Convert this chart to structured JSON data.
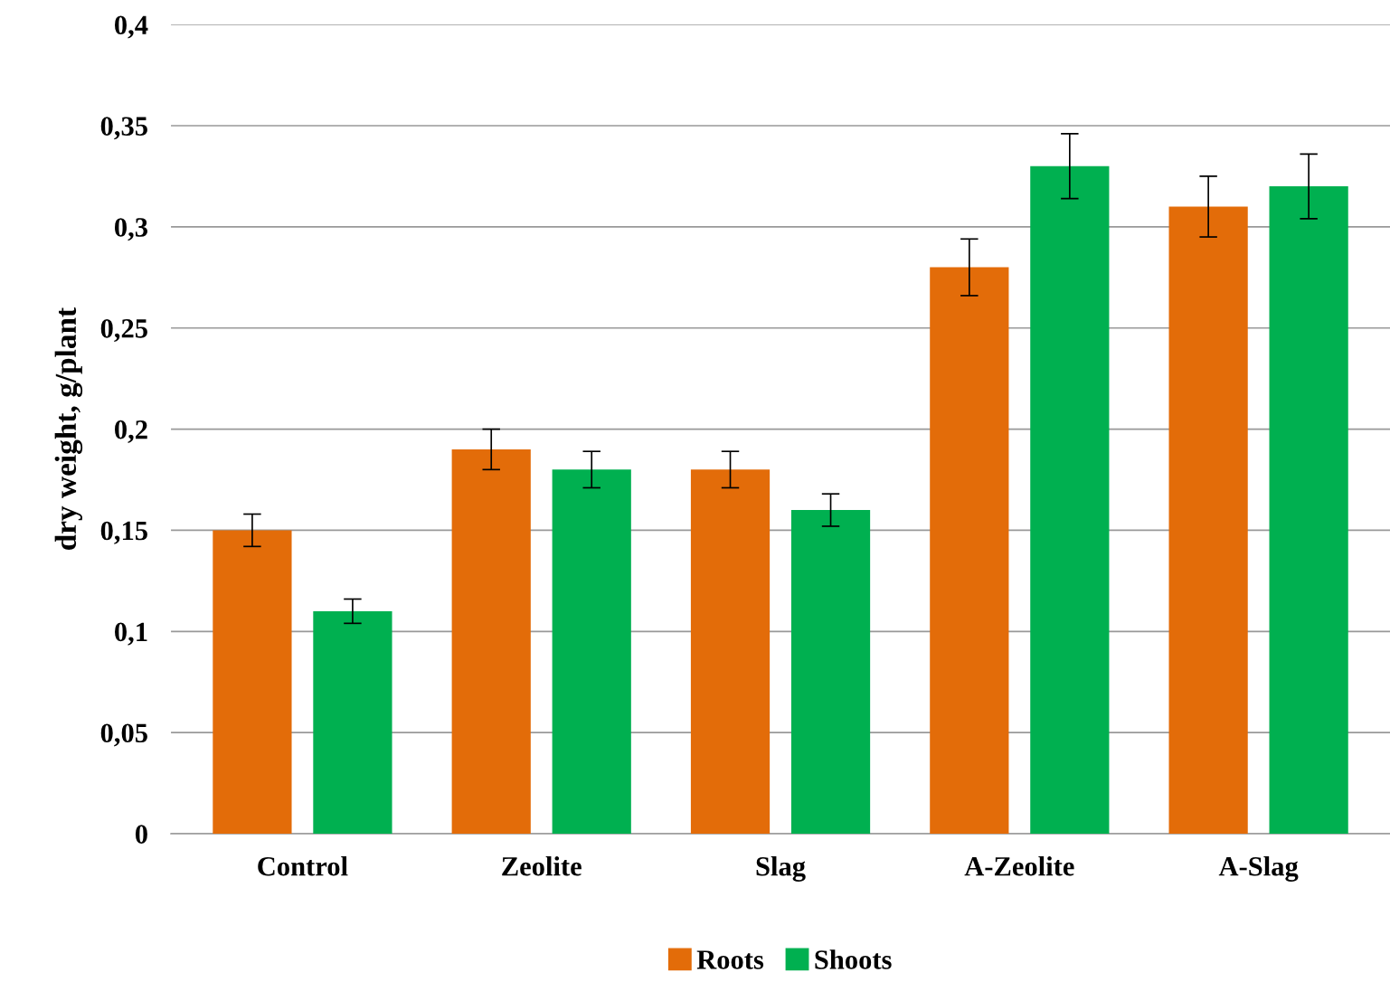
{
  "chart_data": {
    "type": "bar",
    "ylabel": "dry weight, g/plant",
    "categories": [
      "Control",
      "Zeolite",
      "Slag",
      "A-Zeolite",
      "A-Slag"
    ],
    "series": [
      {
        "name": "Roots",
        "color": "#e36c09",
        "values": [
          0.15,
          0.19,
          0.18,
          0.28,
          0.31
        ],
        "errors": [
          0.008,
          0.01,
          0.009,
          0.014,
          0.015
        ]
      },
      {
        "name": "Shoots",
        "color": "#00b050",
        "values": [
          0.11,
          0.18,
          0.16,
          0.33,
          0.32
        ],
        "errors": [
          0.006,
          0.009,
          0.008,
          0.016,
          0.016
        ]
      }
    ],
    "ylim": [
      0,
      0.4
    ],
    "yticks": [
      {
        "value": 0,
        "label": "0"
      },
      {
        "value": 0.05,
        "label": "0,05"
      },
      {
        "value": 0.1,
        "label": "0,1"
      },
      {
        "value": 0.15,
        "label": "0,15"
      },
      {
        "value": 0.2,
        "label": "0,2"
      },
      {
        "value": 0.25,
        "label": "0,25"
      },
      {
        "value": 0.3,
        "label": "0,3"
      },
      {
        "value": 0.35,
        "label": "0,35"
      },
      {
        "value": 0.4,
        "label": "0,4"
      }
    ],
    "grid": "y",
    "legend": "bottom"
  }
}
